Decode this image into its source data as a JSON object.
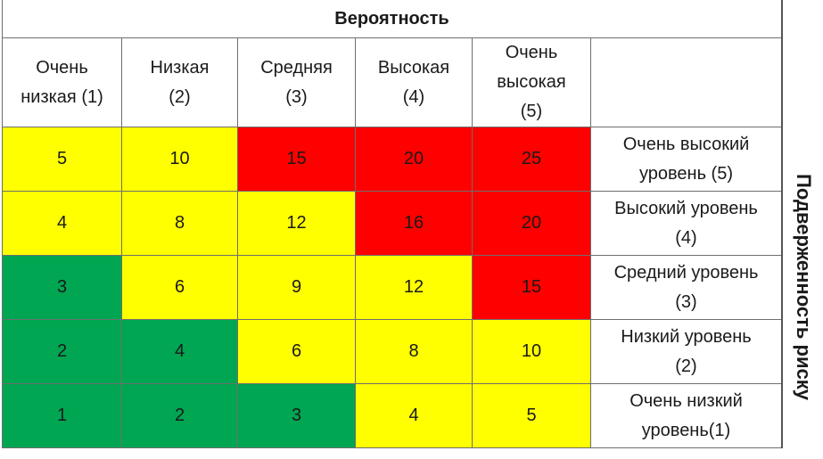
{
  "title": "Вероятность",
  "side_title": "Подверженность риску",
  "probability": [
    {
      "line1": "Очень",
      "line2": "низкая (1)"
    },
    {
      "line1": "Низкая",
      "line2": "(2)"
    },
    {
      "line1": "Средняя",
      "line2": "(3)"
    },
    {
      "line1": "Высокая",
      "line2": "(4)"
    },
    {
      "line1": "Очень",
      "line2": "высокая",
      "line3": "(5)"
    }
  ],
  "rows": [
    {
      "values": [
        "5",
        "10",
        "15",
        "20",
        "25"
      ],
      "level1": "Очень высокий",
      "level2": "уровень (5)"
    },
    {
      "values": [
        "4",
        "8",
        "12",
        "16",
        "20"
      ],
      "level1": "Высокий уровень",
      "level2": "(4)"
    },
    {
      "values": [
        "3",
        "6",
        "9",
        "12",
        "15"
      ],
      "level1": "Средний уровень",
      "level2": "(3)"
    },
    {
      "values": [
        "2",
        "4",
        "6",
        "8",
        "10"
      ],
      "level1": "Низкий уровень",
      "level2": "(2)"
    },
    {
      "values": [
        "1",
        "2",
        "3",
        "4",
        "5"
      ],
      "level1": "Очень низкий",
      "level2": "уровень(1)"
    }
  ],
  "colors": {
    "green": "#00a651",
    "yellow": "#ffff00",
    "red": "#ff0000"
  },
  "cell_colors": [
    [
      "yellow",
      "yellow",
      "red",
      "red",
      "red"
    ],
    [
      "yellow",
      "yellow",
      "yellow",
      "red",
      "red"
    ],
    [
      "green",
      "yellow",
      "yellow",
      "yellow",
      "red"
    ],
    [
      "green",
      "green",
      "yellow",
      "yellow",
      "yellow"
    ],
    [
      "green",
      "green",
      "green",
      "yellow",
      "yellow"
    ]
  ]
}
